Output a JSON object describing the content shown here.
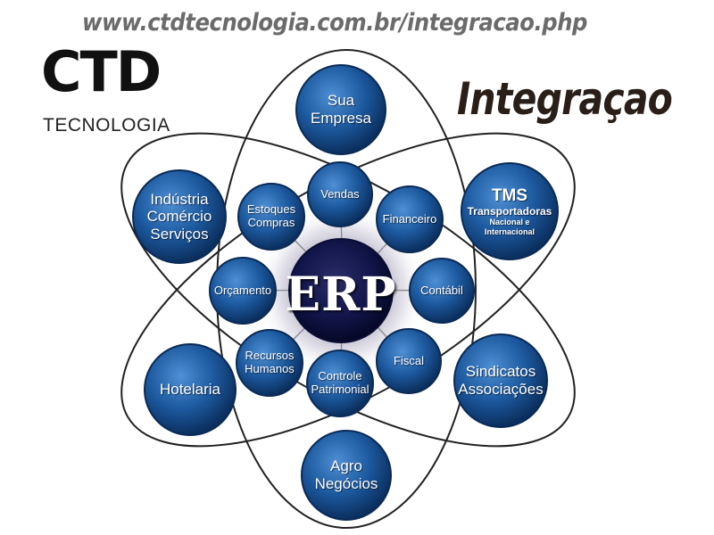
{
  "header": {
    "url": "www.ctdtecnologia.com.br/integracao.php",
    "heading": "Integraçao"
  },
  "logo": {
    "name": "CTD",
    "subtitle": "TECNOLOGIA"
  },
  "diagram": {
    "center": "ERP",
    "outer_nodes": {
      "sua_empresa": "Sua\nEmpresa",
      "industria": "Indústria\nComércio\nServiços",
      "tms_title": "TMS",
      "tms_sub": "Transportadoras",
      "tms_sub2": "Nacional e\nInternacional",
      "hotelaria": "Hotelaria",
      "sindicatos": "Sindicatos\nAssociações",
      "agro": "Agro\nNegócios"
    },
    "inner_nodes": {
      "vendas": "Vendas",
      "estoques": "Estoques\nCompras",
      "financeiro": "Financeiro",
      "orcamento": "Orçamento",
      "contabil": "Contábil",
      "recursos": "Recursos\nHumanos",
      "fiscal": "Fiscal",
      "patrimonial": "Controle\nPatrimonial"
    }
  },
  "colors": {
    "node_dark": "#0f3f7a",
    "node_light": "#3a77bd",
    "ring_stroke": "#222222",
    "center_glow": "#b9b6c8"
  }
}
